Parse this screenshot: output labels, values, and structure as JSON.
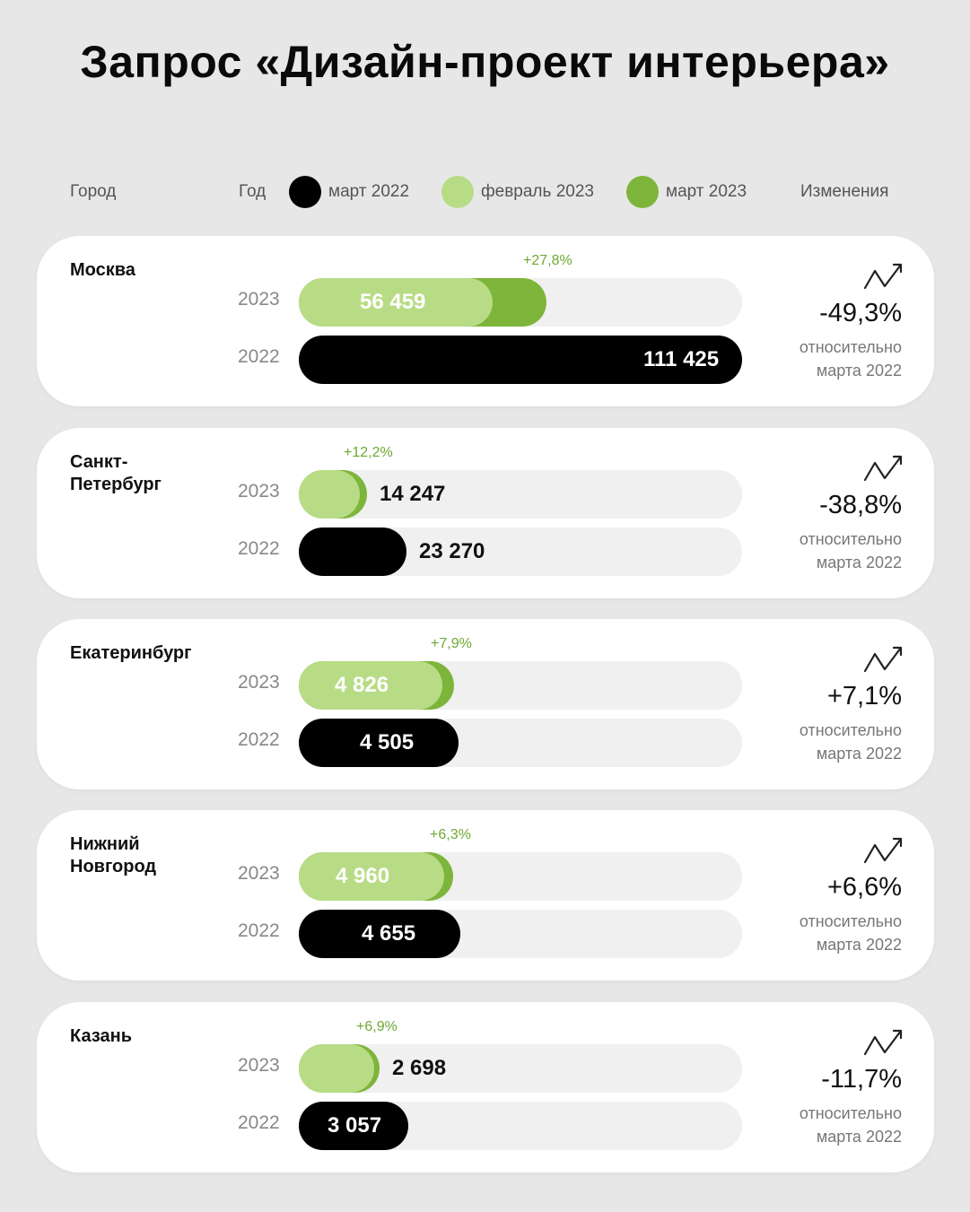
{
  "title": "Запрос «Дизайн-проект интерьера»",
  "legend": {
    "city": "Город",
    "year": "Год",
    "mar22": "март 2022",
    "feb23": "февраль 2023",
    "mar23": "март 2023",
    "changes": "Изменения"
  },
  "colors": {
    "mar2022": "#000000",
    "feb2023": "#b8dc86",
    "mar2023": "#7db53a",
    "track": "#f0f0f0"
  },
  "relative_label_1": "относительно",
  "relative_label_2": "марта 2022",
  "year_2023": "2023",
  "year_2022": "2022",
  "chart_data": {
    "type": "bar",
    "title": "Запрос «Дизайн-проект интерьера»",
    "series_names": [
      "март 2022",
      "февраль 2023",
      "март 2023"
    ],
    "cities": [
      {
        "name": "Москва",
        "feb2023": 56459,
        "feb2023_label": "56 459",
        "mar2023_growth": "+27,8%",
        "mar2022": 111425,
        "mar2022_label": "111 425",
        "change": "-49,3%"
      },
      {
        "name": "Санкт-\nПетербург",
        "feb2023": 14247,
        "feb2023_label": "14 247",
        "mar2023_growth": "+12,2%",
        "mar2022": 23270,
        "mar2022_label": "23 270",
        "change": "-38,8%"
      },
      {
        "name": "Екатеринбург",
        "feb2023": 4826,
        "feb2023_label": "4 826",
        "mar2023_growth": "+7,9%",
        "mar2022": 4505,
        "mar2022_label": "4 505",
        "change": "+7,1%"
      },
      {
        "name": "Нижний\nНовгород",
        "feb2023": 4960,
        "feb2023_label": "4 960",
        "mar2023_growth": "+6,3%",
        "mar2022": 4655,
        "mar2022_label": "4 655",
        "change": "+6,6%"
      },
      {
        "name": "Казань",
        "feb2023": 2698,
        "feb2023_label": "2 698",
        "mar2023_growth": "+6,9%",
        "mar2022": 3057,
        "mar2022_label": "3 057",
        "change": "-11,7%"
      }
    ]
  }
}
